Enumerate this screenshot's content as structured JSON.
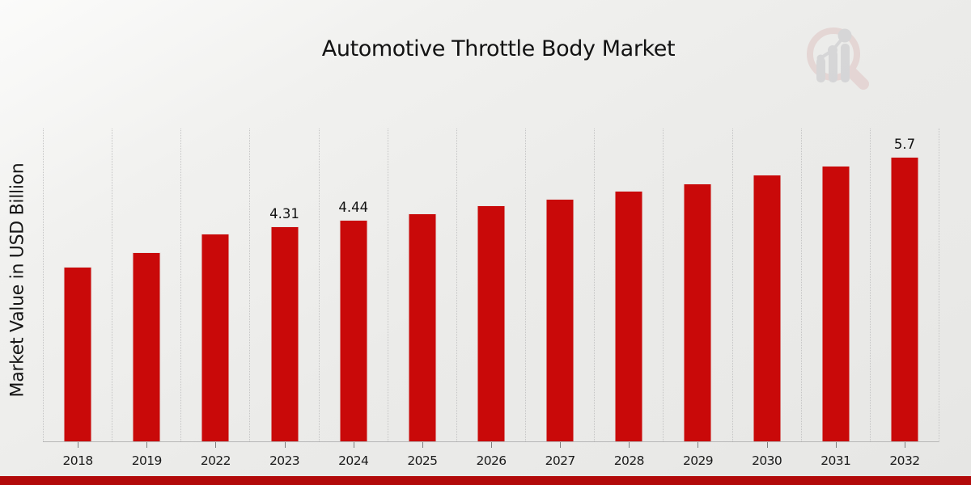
{
  "header": {
    "title": "Automotive Throttle Body Market"
  },
  "axes": {
    "y_label": "Market Value in USD Billion"
  },
  "logo": {
    "name": "magnifier-bar-chart-watermark"
  },
  "colors": {
    "bar": "#c90909",
    "bottom_stripe": "#b20a0a",
    "gridline": "#c5c5c5",
    "axis_line": "#b7b7b7",
    "text": "#111111",
    "logo_pink": "#dbb8b8",
    "logo_gray": "#b9b9bf"
  },
  "chart_data": {
    "type": "bar",
    "title": "Automotive Throttle Body Market",
    "xlabel": "",
    "ylabel": "Market Value in USD Billion",
    "unit": "USD Billion",
    "categories": [
      "2018",
      "2019",
      "2022",
      "2023",
      "2024",
      "2025",
      "2026",
      "2027",
      "2028",
      "2029",
      "2030",
      "2031",
      "2032"
    ],
    "values": [
      3.5,
      3.79,
      4.16,
      4.31,
      4.44,
      4.58,
      4.73,
      4.87,
      5.03,
      5.18,
      5.35,
      5.53,
      5.7
    ],
    "bar_labels": [
      "",
      "",
      "",
      "4.31",
      "4.44",
      "",
      "",
      "",
      "",
      "",
      "",
      "",
      "5.7"
    ],
    "ylim": [
      0,
      6.27
    ],
    "grid": "vertical-dotted",
    "legend_position": "none"
  }
}
